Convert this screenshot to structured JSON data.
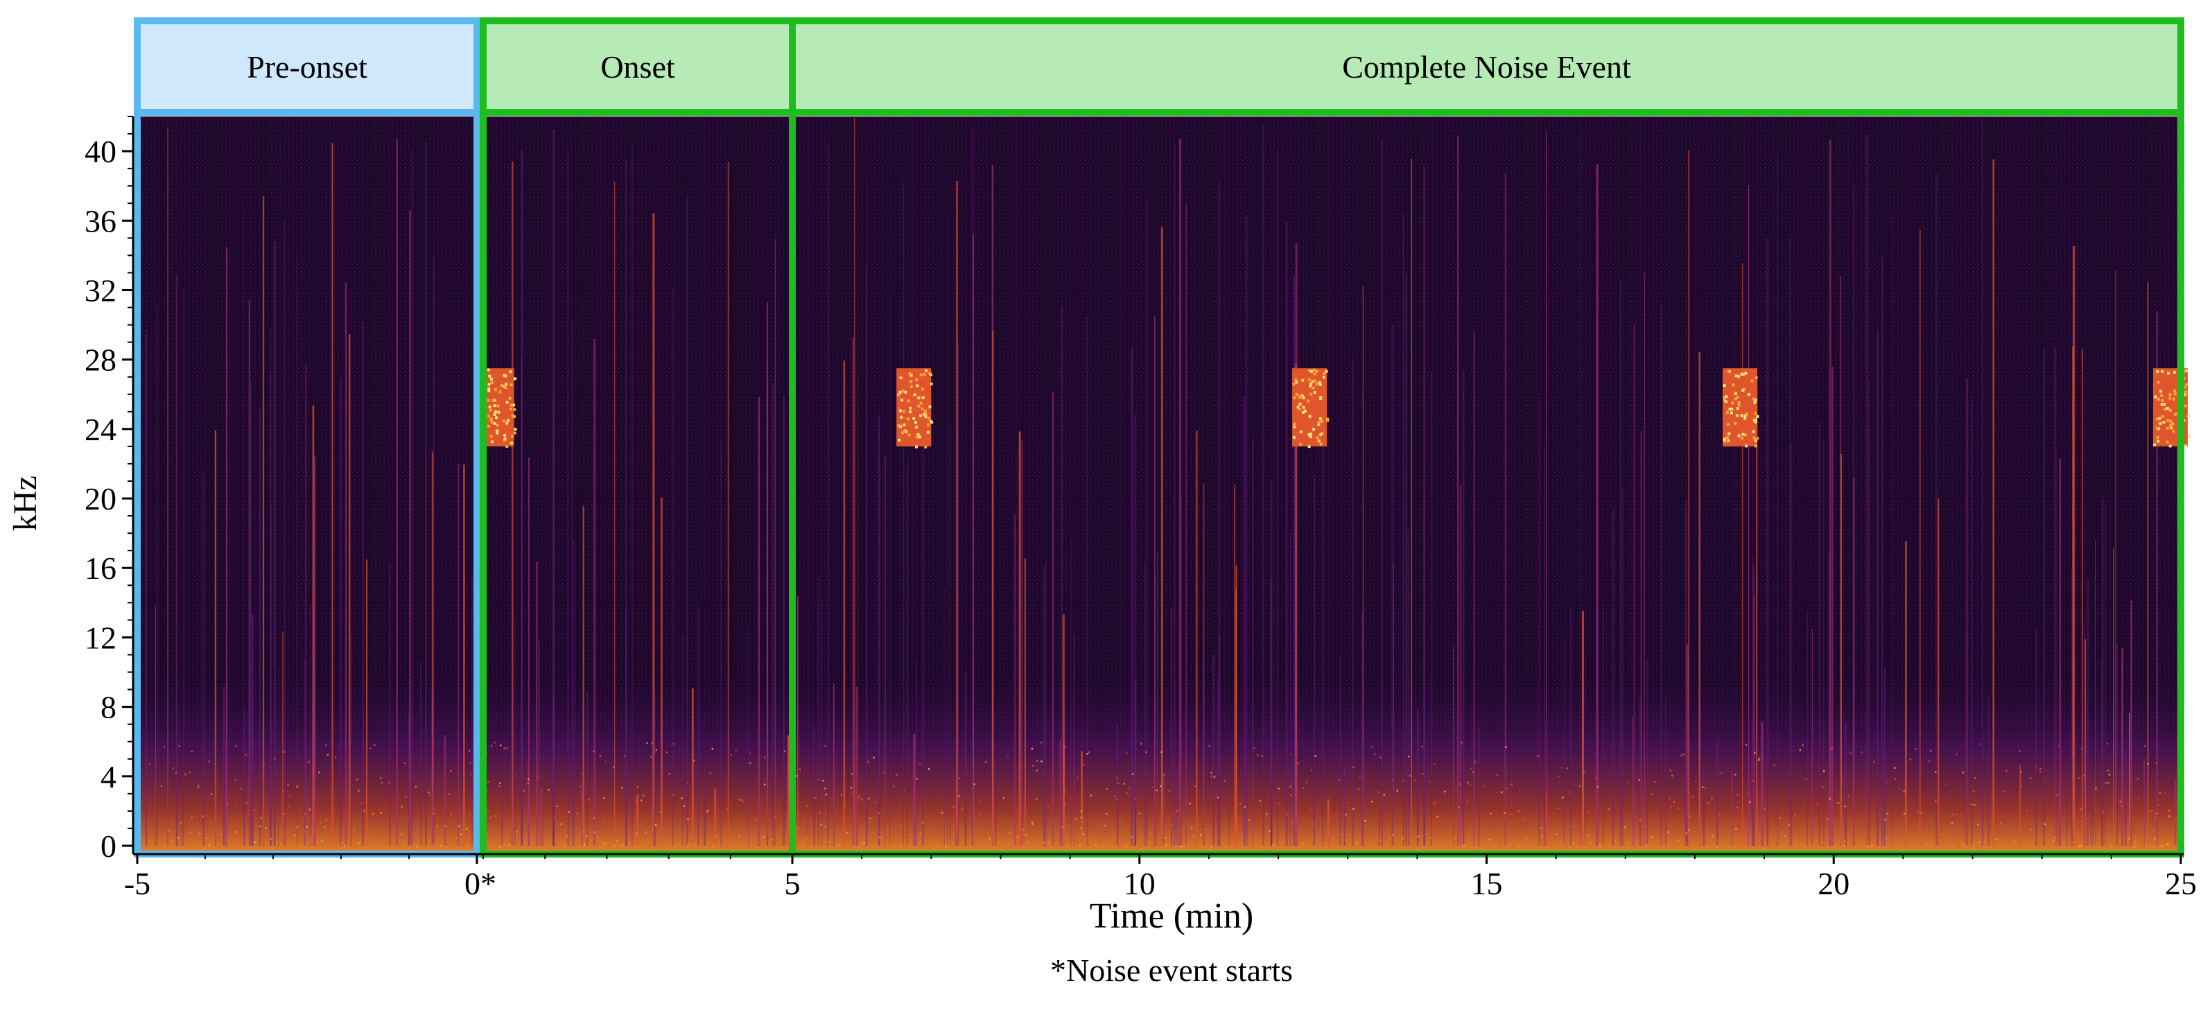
{
  "chart_data": {
    "type": "heatmap",
    "subtype": "spectrogram",
    "colormap": "inferno",
    "xlabel": "Time (min)",
    "ylabel": "kHz",
    "footnote": "*Noise event starts",
    "ylim": [
      0,
      42
    ],
    "yticks": [
      "0",
      "4",
      "8",
      "12",
      "16",
      "20",
      "24",
      "28",
      "32",
      "36",
      "40"
    ],
    "yticks_values": [
      0,
      4,
      8,
      12,
      16,
      20,
      24,
      28,
      32,
      36,
      40
    ],
    "panels": [
      {
        "label": "Pre-onset",
        "border_color": "#5bb8ee",
        "header_color": "#cfe8fb",
        "time_range": [
          -5,
          0
        ],
        "xticks": [
          {
            "value": -5,
            "label": "-5"
          },
          {
            "value": 0,
            "label": "0*"
          }
        ],
        "noise_bursts": []
      },
      {
        "label": "Onset",
        "border_color": "#1ebd1e",
        "header_color": "#b6ebb6",
        "time_range": [
          0,
          5
        ],
        "xticks": [
          {
            "value": 5,
            "label": "5"
          }
        ],
        "noise_bursts": [
          {
            "start": 0.05,
            "end": 0.5,
            "f_low": 23,
            "f_high": 27.5
          }
        ]
      },
      {
        "label": "Complete Noise Event",
        "border_color": "#1ebd1e",
        "header_color": "#b6ebb6",
        "time_range": [
          5,
          25
        ],
        "xticks": [
          {
            "value": 5,
            "label": "5"
          },
          {
            "value": 10,
            "label": "10"
          },
          {
            "value": 15,
            "label": "15"
          },
          {
            "value": 20,
            "label": "20"
          },
          {
            "value": 25,
            "label": "25"
          }
        ],
        "noise_bursts": [
          {
            "start": 6.5,
            "end": 7.0,
            "f_low": 23,
            "f_high": 27.5
          },
          {
            "start": 12.2,
            "end": 12.7,
            "f_low": 23,
            "f_high": 27.5
          },
          {
            "start": 18.4,
            "end": 18.9,
            "f_low": 23,
            "f_high": 27.5
          },
          {
            "start": 24.6,
            "end": 25.1,
            "f_low": 23,
            "f_high": 27.5
          }
        ]
      }
    ]
  }
}
